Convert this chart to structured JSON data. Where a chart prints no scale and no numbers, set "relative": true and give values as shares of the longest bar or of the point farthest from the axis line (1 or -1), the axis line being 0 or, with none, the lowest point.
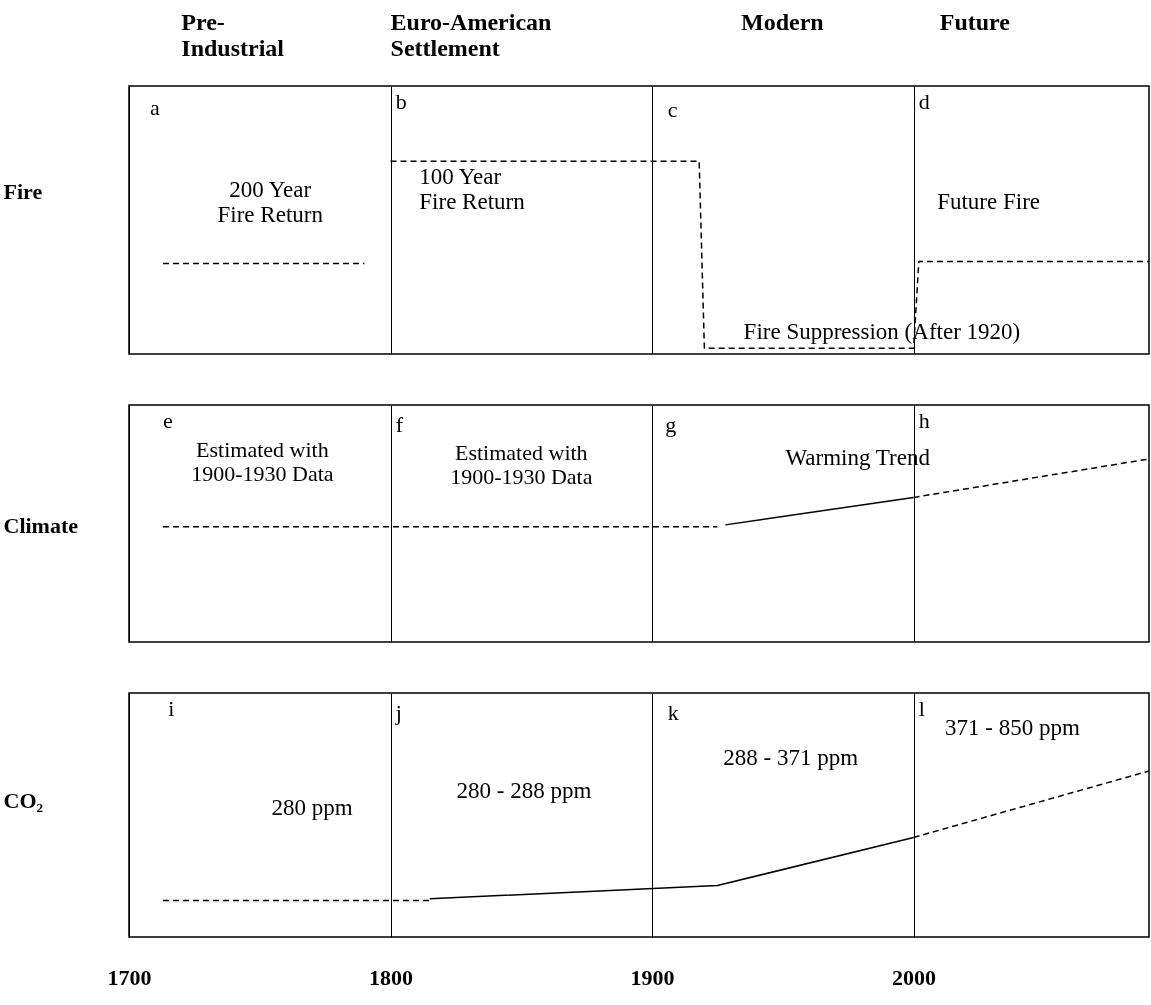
{
  "chart_data": [
    {
      "type": "line",
      "relative": true,
      "ylabel": "Fire",
      "xlim": [
        1700,
        2090
      ],
      "xticks": [
        1700,
        1800,
        1900,
        2000
      ],
      "tick_labels": false,
      "grid": "x",
      "annotations": [
        "Pre-\nIndustrial",
        "Euro-American\nSettlement",
        "Modern",
        "Future",
        "a",
        "b",
        "c",
        "d",
        "200 Year\nFire Return",
        "100 Year\nFire Return",
        "Future Fire",
        "Fire Suppression (After 1920)"
      ],
      "series": [
        {
          "color": "#000000",
          "line_style": "dashed",
          "x": [
            1713,
            1790
          ],
          "values": [
            0.47,
            0.47
          ]
        },
        {
          "color": "#000000",
          "line_style": "dashed",
          "x": [
            1800,
            1918,
            1920,
            2000,
            2002,
            2090
          ],
          "values": [
            1,
            1,
            0.03,
            0.03,
            0.48,
            0.48
          ]
        }
      ]
    },
    {
      "type": "line",
      "relative": true,
      "ylabel": "Climate",
      "xlim": [
        1700,
        2090
      ],
      "xticks": [
        1700,
        1800,
        1900,
        2000
      ],
      "tick_labels": false,
      "grid": "x",
      "annotations": [
        "e",
        "f",
        "g",
        "h",
        "Estimated with\n1900-1930 Data",
        "Estimated with\n1900-1930 Data",
        "Warming Trend"
      ],
      "series": [
        {
          "color": "#000000",
          "line_style": "dashed",
          "x": [
            1713,
            1925
          ],
          "values": [
            0.63,
            0.63
          ]
        },
        {
          "color": "#000000",
          "line_style": "solid",
          "x": [
            1928,
            2000
          ],
          "values": [
            0.64,
            0.79
          ]
        },
        {
          "color": "#000000",
          "line_style": "dashed",
          "x": [
            2000,
            2090
          ],
          "values": [
            0.79,
            1
          ]
        }
      ]
    },
    {
      "type": "line",
      "relative": true,
      "ylabel": "CO₂",
      "xlim": [
        1700,
        2090
      ],
      "xticks": [
        1700,
        1800,
        1900,
        2000
      ],
      "tick_labels": "x",
      "grid": "x",
      "annotations": [
        "i",
        "j",
        "k",
        "l",
        "280 ppm",
        "280 - 288 ppm",
        "288 - 371 ppm",
        "371 - 850 ppm"
      ],
      "series": [
        {
          "color": "#000000",
          "line_style": "dashed",
          "x": [
            1713,
            1815
          ],
          "values": [
            0.22,
            0.22
          ]
        },
        {
          "color": "#000000",
          "line_style": "solid",
          "x": [
            1815,
            1925,
            2000
          ],
          "values": [
            0.23,
            0.31,
            0.6
          ]
        },
        {
          "color": "#000000",
          "line_style": "dashed",
          "x": [
            2000,
            2090
          ],
          "values": [
            0.6,
            1
          ]
        }
      ]
    }
  ]
}
